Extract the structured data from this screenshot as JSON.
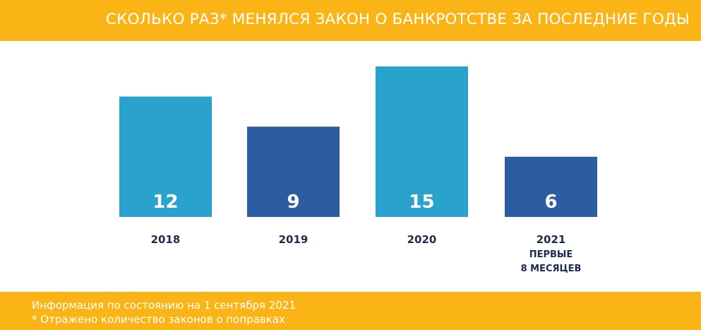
{
  "header": {
    "title": "СКОЛЬКО РАЗ* МЕНЯЛСЯ ЗАКОН О БАНКРОТСТВЕ ЗА ПОСЛЕДНИЕ ГОДЫ"
  },
  "footer": {
    "note1": "Информация по состоянию на 1 сентября 2021",
    "note2": "* Отражено количество законов о поправках"
  },
  "colors": {
    "accent": "#FBB415",
    "bar_light": "#29A3CE",
    "bar_dark": "#2D5CA0",
    "label": "#1E2B4F"
  },
  "chart_data": {
    "type": "bar",
    "title": "СКОЛЬКО РАЗ* МЕНЯЛСЯ ЗАКОН О БАНКРОТСТВЕ ЗА ПОСЛЕДНИЕ ГОДЫ",
    "categories": [
      "2018",
      "2019",
      "2020",
      "2021"
    ],
    "category_sublabels": [
      "",
      "",
      "",
      "ПЕРВЫЕ\n8 МЕСЯЦЕВ"
    ],
    "values": [
      12,
      9,
      15,
      6
    ],
    "bar_colors": [
      "#29A3CE",
      "#2D5CA0",
      "#29A3CE",
      "#2D5CA0"
    ],
    "data_labels": true,
    "grid": false,
    "ylim": [
      0,
      15
    ]
  }
}
